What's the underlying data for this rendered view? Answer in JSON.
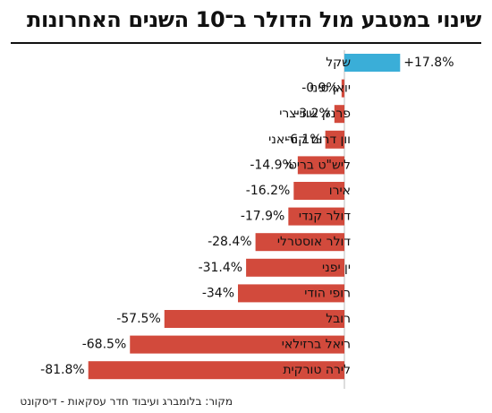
{
  "title": "שינוי במטבע מול הדולר ב־10 השנים האחרונות",
  "source": "מקור: בלומברג ועיבוד חדר עסקאות - דיסקונט",
  "colors": {
    "positive": "#3aaed8",
    "negative": "#d24a3c",
    "divider": "#bbbbbb",
    "rule": "#111111"
  },
  "chart_data": {
    "type": "bar",
    "orientation": "horizontal",
    "title": "שינוי במטבע מול הדולר ב־10 השנים האחרונות",
    "categories": [
      "שקל",
      "יואן סיני",
      "פרנק שווייצרי",
      "וון דרום קוריאני",
      "ליש\"ט בריטי",
      "אירו",
      "דולר קנדי",
      "דולר אוסטרלי",
      "ין יפני",
      "רופי הודי",
      "רובל",
      "ריאל ברזילאי",
      "לירה טורקית"
    ],
    "values": [
      17.8,
      -0.9,
      -3.2,
      -6.1,
      -14.9,
      -16.2,
      -17.9,
      -28.4,
      -31.4,
      -34,
      -57.5,
      -68.5,
      -81.8
    ],
    "labels": [
      "+17.8%",
      "-0.9%",
      "-3.2%",
      "-6.1%",
      "-14.9%",
      "-16.2%",
      "-17.9%",
      "-28.4%",
      "-31.4%",
      "-34%",
      "-57.5%",
      "-68.5%",
      "-81.8%"
    ],
    "unit": "%",
    "xlabel": "",
    "ylabel": "",
    "grid": false,
    "legend": "none"
  }
}
